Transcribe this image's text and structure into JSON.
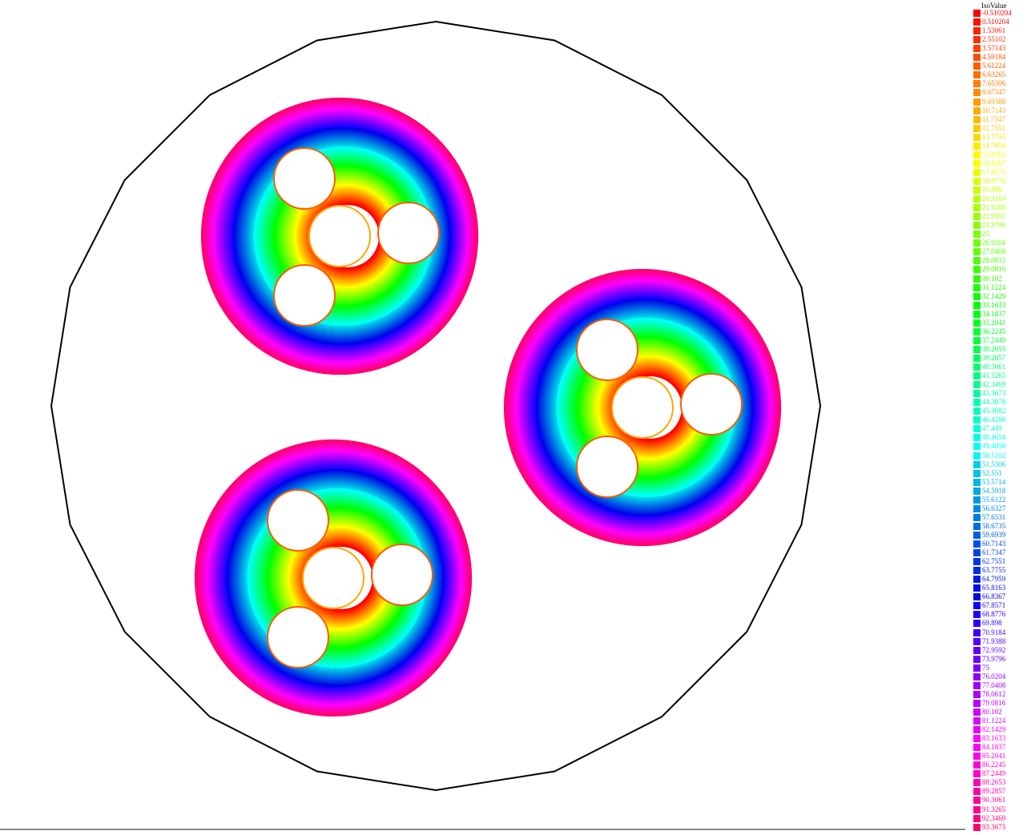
{
  "chart_data": {
    "type": "contour",
    "legend_title": "IsoValue",
    "levels": [
      "-0.510204",
      "0.510204",
      "1.53061",
      "2.55102",
      "3.57143",
      "4.59184",
      "5.61224",
      "6.63265",
      "7.65306",
      "8.67347",
      "9.69388",
      "10.7143",
      "11.7347",
      "12.7551",
      "13.7755",
      "14.7959",
      "15.8163",
      "16.8367",
      "17.8571",
      "18.8776",
      "19.898",
      "20.9184",
      "21.9388",
      "22.9592",
      "23.9796",
      "25",
      "26.0204",
      "27.0408",
      "28.0612",
      "29.0816",
      "30.102",
      "31.1224",
      "32.1429",
      "33.1633",
      "34.1837",
      "35.2041",
      "36.2245",
      "37.2449",
      "38.2653",
      "39.2857",
      "40.3061",
      "41.3265",
      "42.3469",
      "43.3673",
      "44.3878",
      "45.4082",
      "46.4286",
      "47.449",
      "48.4694",
      "49.4898",
      "50.5102",
      "51.5306",
      "52.551",
      "53.5714",
      "54.5918",
      "55.6122",
      "56.6327",
      "57.6531",
      "58.6735",
      "59.6939",
      "60.7143",
      "61.7347",
      "62.7551",
      "63.7755",
      "64.7959",
      "65.8163",
      "66.8367",
      "67.8571",
      "68.8776",
      "69.898",
      "70.9184",
      "71.9388",
      "72.9592",
      "73.9796",
      "75",
      "76.0204",
      "77.0408",
      "78.0612",
      "79.0816",
      "80.102",
      "81.1224",
      "82.1429",
      "83.1633",
      "84.1837",
      "85.2041",
      "86.2245",
      "87.2449",
      "88.2653",
      "89.2857",
      "90.3061",
      "91.3265",
      "92.3469",
      "93.3673"
    ],
    "colormap": "hsv-rainbow red-to-magenta",
    "outer_boundary": "polygon-circle",
    "groups": 3,
    "conductors_per_group": 4
  }
}
